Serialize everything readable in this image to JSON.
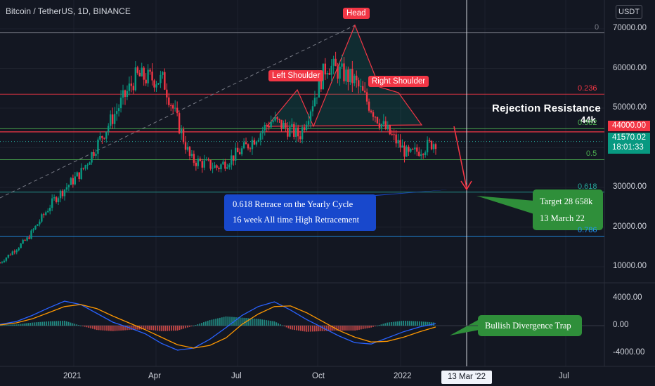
{
  "title": "Bitcoin / TetherUS, 1D, BINANCE",
  "currency": "USDT",
  "colors": {
    "red": "#f23645",
    "green": "#089981",
    "blue": "#2962ff",
    "orange": "#ff9800",
    "fib_green": "#4caf50",
    "fib_teal": "#26a69a",
    "fib_blue": "#2196f3"
  },
  "annotations": {
    "head": "Head",
    "left_shoulder": "Left Shoulder",
    "right_shoulder": "Right Shoulder",
    "rejection": "Rejection Resistance",
    "rejection_value": "44k",
    "callout_blue_line1": "0.618 Retrace on the Yearly Cycle",
    "callout_blue_line2": "16 week All time High Retracement",
    "target_line1": "Target 28 658k",
    "target_line2": "13 March 22",
    "divergence": "Bullish Divergence Trap"
  },
  "price_boxes": {
    "resistance": "44000.00",
    "last_price": "41570.02",
    "countdown": "18:01:33"
  },
  "crosshair_date": "13 Mar '22",
  "chart_data": [
    {
      "type": "candlestick",
      "title": "Bitcoin / TetherUS, 1D, BINANCE",
      "y_ticks": [
        "70000.00",
        "60000.00",
        "50000.00",
        "40000.00",
        "30000.00",
        "20000.00",
        "10000.00"
      ],
      "y_tick_values": [
        70000,
        60000,
        50000,
        40000,
        30000,
        20000,
        10000
      ],
      "ylim": [
        5000,
        75000
      ],
      "x_ticks": [
        "2021",
        "Apr",
        "Jul",
        "Oct",
        "2022",
        "Jul"
      ],
      "fib_levels": [
        {
          "label": "0",
          "value": 69000
        },
        {
          "label": "0.236",
          "value": 53500
        },
        {
          "label": "0.382",
          "value": 44800
        },
        {
          "label": "0.5",
          "value": 37000
        },
        {
          "label": "0.618",
          "value": 28800
        },
        {
          "label": "0.786",
          "value": 17700
        }
      ],
      "price_trend": [
        {
          "date": "2020-10",
          "close": 11000
        },
        {
          "date": "2020-11",
          "close": 17000
        },
        {
          "date": "2020-12",
          "close": 27000
        },
        {
          "date": "2021-01",
          "close": 34000
        },
        {
          "date": "2021-02",
          "close": 46000
        },
        {
          "date": "2021-03",
          "close": 58000
        },
        {
          "date": "2021-04",
          "close": 57000
        },
        {
          "date": "2021-05",
          "close": 37000
        },
        {
          "date": "2021-06",
          "close": 35000
        },
        {
          "date": "2021-07",
          "close": 40000
        },
        {
          "date": "2021-08",
          "close": 47000
        },
        {
          "date": "2021-09",
          "close": 43000
        },
        {
          "date": "2021-10",
          "close": 61000
        },
        {
          "date": "2021-11",
          "close": 57000
        },
        {
          "date": "2021-12",
          "close": 46000
        },
        {
          "date": "2022-01",
          "close": 38000
        },
        {
          "date": "2022-02",
          "close": 41570
        }
      ],
      "projection": {
        "target": 28658,
        "date": "13 March 22"
      }
    },
    {
      "type": "bar",
      "title": "",
      "y_ticks": [
        "4000.00",
        "0.00",
        "-4000.00"
      ],
      "y_tick_values": [
        4000,
        0,
        -4000
      ],
      "ylim": [
        -5000,
        6000
      ],
      "series": [
        {
          "values": [
            200,
            600,
            1500,
            2600,
            3600,
            3100,
            1800,
            500,
            -300,
            -1200,
            -2600,
            -3600,
            -3300,
            -2000,
            -300,
            1500,
            2800,
            3500,
            2300,
            900,
            -300,
            -1500,
            -2500,
            -2700,
            -1800,
            -900,
            -200,
            300
          ]
        },
        {
          "values": [
            100,
            400,
            1000,
            1900,
            2800,
            3100,
            2500,
            1400,
            400,
            -600,
            -1700,
            -2800,
            -3300,
            -2900,
            -1800,
            200,
            1700,
            2800,
            2900,
            1900,
            600,
            -700,
            -1700,
            -2400,
            -2300,
            -1700,
            -900,
            -200
          ]
        }
      ]
    }
  ]
}
